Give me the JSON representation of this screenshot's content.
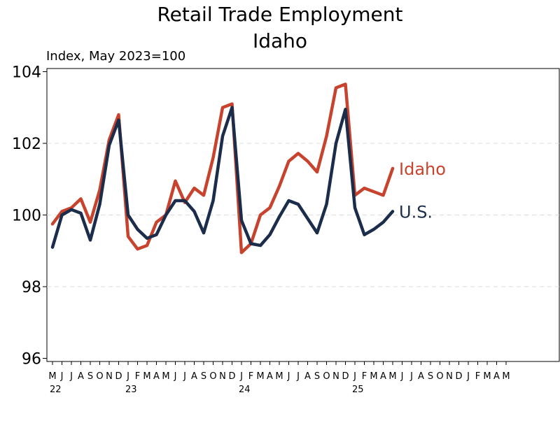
{
  "chart_data": {
    "type": "line",
    "title": "Retail Trade Employment",
    "subtitle": "Idaho",
    "ylabel": "Index, May 2023=100",
    "ylim": [
      96,
      104
    ],
    "yticks": [
      96,
      98,
      100,
      102,
      104
    ],
    "grid": true,
    "legend": "end-of-line labels",
    "x_tick_labels": [
      "M",
      "J",
      "J",
      "A",
      "S",
      "O",
      "N",
      "D",
      "J",
      "F",
      "M",
      "A",
      "M",
      "J",
      "J",
      "A",
      "S",
      "O",
      "N",
      "D",
      "J",
      "F",
      "M",
      "A",
      "M",
      "J",
      "J",
      "A",
      "S",
      "O",
      "N",
      "D",
      "J",
      "F",
      "M",
      "A",
      "M",
      "J",
      "J",
      "A",
      "S",
      "O",
      "N",
      "D",
      "J",
      "F",
      "M",
      "A",
      "M"
    ],
    "year_labels": [
      {
        "label": "22",
        "index": 0
      },
      {
        "label": "23",
        "index": 8
      },
      {
        "label": "24",
        "index": 20
      },
      {
        "label": "25",
        "index": 32
      }
    ],
    "x": [
      "2022-05",
      "2022-06",
      "2022-07",
      "2022-08",
      "2022-09",
      "2022-10",
      "2022-11",
      "2022-12",
      "2023-01",
      "2023-02",
      "2023-03",
      "2023-04",
      "2023-05",
      "2023-06",
      "2023-07",
      "2023-08",
      "2023-09",
      "2023-10",
      "2023-11",
      "2023-12",
      "2024-01",
      "2024-02",
      "2024-03",
      "2024-04",
      "2024-05",
      "2024-06",
      "2024-07",
      "2024-08",
      "2024-09",
      "2024-10",
      "2024-11",
      "2024-12",
      "2025-01",
      "2025-02",
      "2025-03",
      "2025-04",
      "2025-05"
    ],
    "series": [
      {
        "name": "Idaho",
        "color": "#c8432e",
        "values": [
          99.75,
          100.1,
          100.2,
          100.45,
          99.8,
          100.7,
          102.1,
          102.8,
          99.4,
          99.05,
          99.15,
          99.8,
          100.0,
          100.95,
          100.35,
          100.75,
          100.55,
          101.6,
          103.0,
          103.1,
          98.95,
          99.2,
          100.0,
          100.2,
          100.8,
          101.5,
          101.72,
          101.5,
          101.2,
          102.2,
          103.55,
          103.65,
          100.55,
          100.75,
          100.65,
          100.55,
          101.3
        ]
      },
      {
        "name": "U.S.",
        "color": "#1b2d4a",
        "values": [
          99.1,
          100.0,
          100.15,
          100.05,
          99.3,
          100.3,
          101.95,
          102.65,
          100.0,
          99.6,
          99.35,
          99.45,
          100.0,
          100.4,
          100.4,
          100.1,
          99.5,
          100.4,
          102.2,
          103.0,
          99.85,
          99.2,
          99.15,
          99.45,
          99.95,
          100.4,
          100.3,
          99.9,
          99.5,
          100.3,
          102.0,
          102.95,
          100.2,
          99.45,
          99.6,
          99.8,
          100.1
        ]
      }
    ]
  }
}
